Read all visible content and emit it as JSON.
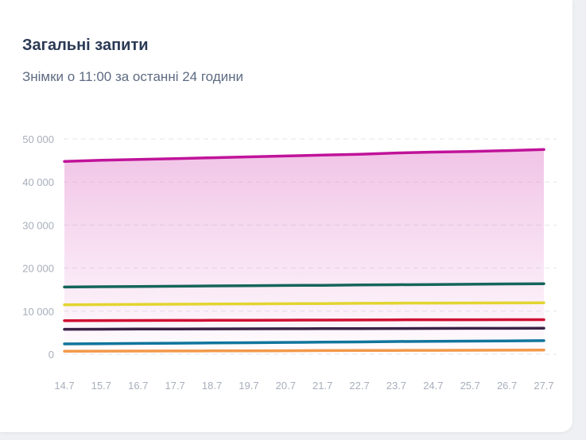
{
  "chart_data": {
    "type": "line",
    "title": "Загальні запити",
    "subtitle": "Знімки о 11:00 за останні 24 години",
    "categories": [
      "14.7",
      "15.7",
      "16.7",
      "17.7",
      "18.7",
      "19.7",
      "20.7",
      "21.7",
      "22.7",
      "23.7",
      "24.7",
      "25.7",
      "26.7",
      "27.7"
    ],
    "ylim": [
      0,
      50000
    ],
    "yticks": [
      0,
      10000,
      20000,
      30000,
      40000,
      50000
    ],
    "ytick_labels": [
      "0",
      "10 000",
      "20 000",
      "30 000",
      "40 000",
      "50 000"
    ],
    "grid": true,
    "series": [
      {
        "color": "#c0139a",
        "area": true,
        "values": [
          44800,
          45050,
          45250,
          45450,
          45650,
          45850,
          46050,
          46250,
          46450,
          46750,
          46950,
          47100,
          47300,
          47550
        ]
      },
      {
        "color": "#15655a",
        "values": [
          15600,
          15680,
          15740,
          15800,
          15860,
          15920,
          15980,
          16020,
          16080,
          16140,
          16200,
          16260,
          16320,
          16380
        ]
      },
      {
        "color": "#e2d530",
        "values": [
          11500,
          11540,
          11580,
          11620,
          11660,
          11700,
          11740,
          11780,
          11820,
          11860,
          11880,
          11900,
          11920,
          11950
        ]
      },
      {
        "color": "#cf1133",
        "values": [
          7800,
          7820,
          7840,
          7860,
          7880,
          7900,
          7920,
          7940,
          7960,
          7980,
          8000,
          8010,
          8020,
          8030
        ]
      },
      {
        "color": "#3b2348",
        "values": [
          5800,
          5820,
          5840,
          5860,
          5880,
          5900,
          5920,
          5940,
          5960,
          5980,
          6000,
          6010,
          6020,
          6030
        ]
      },
      {
        "color": "#10759c",
        "values": [
          2400,
          2450,
          2500,
          2560,
          2620,
          2680,
          2740,
          2800,
          2860,
          2950,
          3000,
          3050,
          3100,
          3150
        ]
      },
      {
        "color": "#f2994a",
        "values": [
          700,
          720,
          740,
          760,
          780,
          800,
          820,
          840,
          860,
          880,
          900,
          920,
          940,
          960
        ]
      }
    ]
  }
}
